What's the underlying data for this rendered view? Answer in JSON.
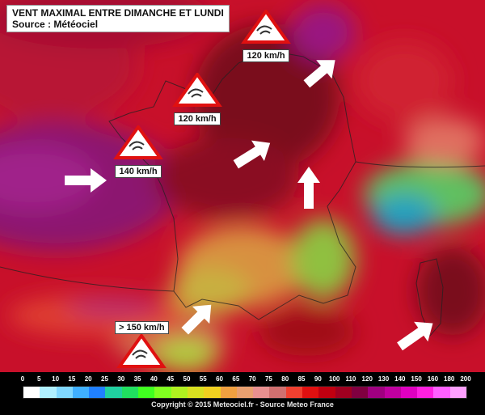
{
  "title": {
    "line1": "VENT MAXIMAL ENTRE DIMANCHE ET LUNDI",
    "line2": "Source : Météociel"
  },
  "warnings": [
    {
      "label": "120 km/h",
      "icon": "wind-warning-icon"
    },
    {
      "label": "120 km/h",
      "icon": "wind-warning-icon"
    },
    {
      "label": "140 km/h",
      "icon": "wind-warning-icon"
    },
    {
      "label": "> 150 km/h",
      "icon": "wind-warning-icon"
    }
  ],
  "arrows": [
    "wind-arrow-icon",
    "wind-arrow-icon",
    "wind-arrow-icon",
    "wind-arrow-icon",
    "wind-arrow-icon",
    "wind-arrow-icon",
    "wind-arrow-icon"
  ],
  "scale": {
    "ticks": [
      "0",
      "5",
      "10",
      "15",
      "20",
      "25",
      "30",
      "35",
      "40",
      "45",
      "50",
      "55",
      "60",
      "65",
      "70",
      "75",
      "80",
      "85",
      "90",
      "100",
      "110",
      "120",
      "130",
      "140",
      "150",
      "160",
      "180",
      "200"
    ],
    "colors": [
      "#ffffff",
      "#b0f0ff",
      "#80d8ff",
      "#40b0ff",
      "#2080ff",
      "#20d0a0",
      "#20e060",
      "#40ff20",
      "#80ff20",
      "#b0f020",
      "#d8e020",
      "#f0d020",
      "#f0a040",
      "#e8a070",
      "#e89090",
      "#d07070",
      "#f04030",
      "#e01010",
      "#c00010",
      "#a00020",
      "#800040",
      "#a00080",
      "#c000a0",
      "#e000c0",
      "#ff20e0",
      "#ff60ff",
      "#ffa0ff"
    ],
    "credit": "Copyright © 2015 Meteociel.fr - Source Meteo France"
  }
}
